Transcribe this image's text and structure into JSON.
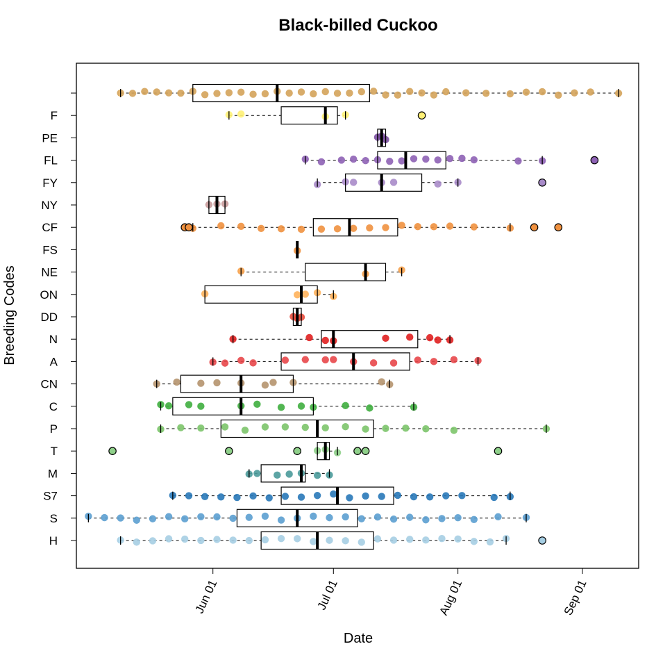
{
  "chart_data": {
    "type": "box",
    "title": "Black-billed Cuckoo",
    "xlabel": "Date",
    "ylabel": "Breeding Codes",
    "x_ticks": [
      "Jun 01",
      "Jul 01",
      "Aug 01",
      "Sep 01"
    ],
    "x_tick_dates": [
      "2020-06-01",
      "2020-07-01",
      "2020-08-01",
      "2020-09-01"
    ],
    "xlim": [
      "2020-04-28",
      "2020-09-15"
    ],
    "grid": false,
    "categories": [
      {
        "code": "",
        "color": "#D4A35A",
        "whisker_low": "2020-05-09",
        "q1": "2020-05-27",
        "median": "2020-06-17",
        "q3": "2020-07-10",
        "whisker_high": "2020-09-10",
        "outliers": [],
        "points": [
          "2020-05-09",
          "2020-05-12",
          "2020-05-15",
          "2020-05-18",
          "2020-05-21",
          "2020-05-24",
          "2020-05-27",
          "2020-05-30",
          "2020-06-02",
          "2020-06-05",
          "2020-06-08",
          "2020-06-11",
          "2020-06-14",
          "2020-06-17",
          "2020-06-20",
          "2020-06-23",
          "2020-06-26",
          "2020-06-29",
          "2020-07-02",
          "2020-07-05",
          "2020-07-08",
          "2020-07-11",
          "2020-07-14",
          "2020-07-17",
          "2020-07-20",
          "2020-07-23",
          "2020-07-26",
          "2020-07-29",
          "2020-08-03",
          "2020-08-08",
          "2020-08-14",
          "2020-08-18",
          "2020-08-22",
          "2020-08-26",
          "2020-08-30",
          "2020-09-03",
          "2020-09-10"
        ]
      },
      {
        "code": "F",
        "color": "#FFF176",
        "whisker_low": "2020-06-05",
        "q1": "2020-06-18",
        "median": "2020-06-29",
        "q3": "2020-07-02",
        "whisker_high": "2020-07-04",
        "outliers": [
          "2020-07-23"
        ],
        "points": [
          "2020-06-05",
          "2020-06-08",
          "2020-06-29",
          "2020-07-04"
        ]
      },
      {
        "code": "PE",
        "color": "#7B4FA0",
        "whisker_low": "2020-07-12",
        "q1": "2020-07-12",
        "median": "2020-07-13",
        "q3": "2020-07-14",
        "whisker_high": "2020-07-14",
        "outliers": [],
        "points": [
          "2020-07-12",
          "2020-07-13",
          "2020-07-14"
        ]
      },
      {
        "code": "FL",
        "color": "#8E62B5",
        "whisker_low": "2020-06-24",
        "q1": "2020-07-12",
        "median": "2020-07-19",
        "q3": "2020-07-29",
        "whisker_high": "2020-08-22",
        "outliers": [
          "2020-09-04"
        ],
        "points": [
          "2020-06-24",
          "2020-06-28",
          "2020-07-03",
          "2020-07-06",
          "2020-07-09",
          "2020-07-12",
          "2020-07-15",
          "2020-07-18",
          "2020-07-21",
          "2020-07-24",
          "2020-07-27",
          "2020-07-30",
          "2020-08-02",
          "2020-08-05",
          "2020-08-16",
          "2020-08-22"
        ]
      },
      {
        "code": "FY",
        "color": "#A88BC9",
        "whisker_low": "2020-06-27",
        "q1": "2020-07-04",
        "median": "2020-07-13",
        "q3": "2020-07-23",
        "whisker_high": "2020-08-01",
        "outliers": [
          "2020-08-22"
        ],
        "points": [
          "2020-06-27",
          "2020-07-04",
          "2020-07-06",
          "2020-07-13",
          "2020-07-16",
          "2020-07-27",
          "2020-08-01"
        ]
      },
      {
        "code": "NY",
        "color": "#C89A9A",
        "whisker_low": "2020-05-31",
        "q1": "2020-05-31",
        "median": "2020-06-02",
        "q3": "2020-06-04",
        "whisker_high": "2020-06-04",
        "outliers": [],
        "points": [
          "2020-05-31",
          "2020-06-02",
          "2020-06-04"
        ]
      },
      {
        "code": "CF",
        "color": "#F0913F",
        "whisker_low": "2020-05-27",
        "q1": "2020-06-26",
        "median": "2020-07-05",
        "q3": "2020-07-17",
        "whisker_high": "2020-08-14",
        "outliers": [
          "2020-05-25",
          "2020-05-26",
          "2020-08-20",
          "2020-08-26"
        ],
        "points": [
          "2020-05-27",
          "2020-06-03",
          "2020-06-08",
          "2020-06-13",
          "2020-06-18",
          "2020-06-23",
          "2020-06-28",
          "2020-07-02",
          "2020-07-06",
          "2020-07-10",
          "2020-07-14",
          "2020-07-18",
          "2020-07-22",
          "2020-07-26",
          "2020-07-30",
          "2020-08-05",
          "2020-08-14"
        ]
      },
      {
        "code": "FS",
        "color": "#F0913F",
        "whisker_low": "2020-06-22",
        "q1": "2020-06-22",
        "median": "2020-06-22",
        "q3": "2020-06-22",
        "whisker_high": "2020-06-22",
        "outliers": [],
        "points": [
          "2020-06-22"
        ]
      },
      {
        "code": "NE",
        "color": "#F5A04A",
        "whisker_low": "2020-06-08",
        "q1": "2020-06-24",
        "median": "2020-07-09",
        "q3": "2020-07-14",
        "whisker_high": "2020-07-18",
        "outliers": [],
        "points": [
          "2020-06-08",
          "2020-07-09",
          "2020-07-18"
        ]
      },
      {
        "code": "ON",
        "color": "#FFB35C",
        "whisker_low": "2020-05-30",
        "q1": "2020-05-30",
        "median": "2020-06-23",
        "q3": "2020-06-27",
        "whisker_high": "2020-07-01",
        "outliers": [],
        "points": [
          "2020-05-30",
          "2020-06-22",
          "2020-06-24",
          "2020-06-27",
          "2020-07-01"
        ]
      },
      {
        "code": "DD",
        "color": "#E84B3C",
        "whisker_low": "2020-06-21",
        "q1": "2020-06-21",
        "median": "2020-06-22",
        "q3": "2020-06-23",
        "whisker_high": "2020-06-23",
        "outliers": [],
        "points": [
          "2020-06-21",
          "2020-06-22",
          "2020-06-23"
        ]
      },
      {
        "code": "N",
        "color": "#E02020",
        "whisker_low": "2020-06-06",
        "q1": "2020-06-28",
        "median": "2020-07-01",
        "q3": "2020-07-22",
        "whisker_high": "2020-07-30",
        "outliers": [],
        "points": [
          "2020-06-06",
          "2020-06-25",
          "2020-06-29",
          "2020-07-01",
          "2020-07-14",
          "2020-07-20",
          "2020-07-25",
          "2020-07-27",
          "2020-07-30"
        ]
      },
      {
        "code": "A",
        "color": "#E8474A",
        "whisker_low": "2020-06-01",
        "q1": "2020-06-18",
        "median": "2020-07-06",
        "q3": "2020-07-20",
        "whisker_high": "2020-08-06",
        "outliers": [],
        "points": [
          "2020-06-01",
          "2020-06-04",
          "2020-06-08",
          "2020-06-11",
          "2020-06-19",
          "2020-06-24",
          "2020-06-29",
          "2020-07-01",
          "2020-07-06",
          "2020-07-11",
          "2020-07-16",
          "2020-07-22",
          "2020-07-26",
          "2020-07-31",
          "2020-08-06"
        ]
      },
      {
        "code": "CN",
        "color": "#B5936E",
        "whisker_low": "2020-05-18",
        "q1": "2020-05-24",
        "median": "2020-06-08",
        "q3": "2020-06-21",
        "whisker_high": "2020-07-15",
        "outliers": [],
        "points": [
          "2020-05-18",
          "2020-05-23",
          "2020-05-29",
          "2020-06-02",
          "2020-06-08",
          "2020-06-14",
          "2020-06-16",
          "2020-06-21",
          "2020-07-13",
          "2020-07-15"
        ]
      },
      {
        "code": "C",
        "color": "#3FAE3F",
        "whisker_low": "2020-05-19",
        "q1": "2020-05-22",
        "median": "2020-06-08",
        "q3": "2020-06-26",
        "whisker_high": "2020-07-21",
        "outliers": [],
        "points": [
          "2020-05-19",
          "2020-05-21",
          "2020-05-26",
          "2020-05-29",
          "2020-06-08",
          "2020-06-12",
          "2020-06-18",
          "2020-06-23",
          "2020-06-26",
          "2020-07-04",
          "2020-07-10",
          "2020-07-21"
        ]
      },
      {
        "code": "P",
        "color": "#7CC46A",
        "whisker_low": "2020-05-19",
        "q1": "2020-06-03",
        "median": "2020-06-27",
        "q3": "2020-07-11",
        "whisker_high": "2020-08-23",
        "outliers": [],
        "points": [
          "2020-05-19",
          "2020-05-24",
          "2020-05-29",
          "2020-06-04",
          "2020-06-09",
          "2020-06-14",
          "2020-06-19",
          "2020-06-24",
          "2020-06-29",
          "2020-07-04",
          "2020-07-09",
          "2020-07-14",
          "2020-07-19",
          "2020-07-24",
          "2020-07-31",
          "2020-08-23"
        ]
      },
      {
        "code": "T",
        "color": "#8FD08A",
        "whisker_low": "2020-06-27",
        "q1": "2020-06-27",
        "median": "2020-06-29",
        "q3": "2020-06-30",
        "whisker_high": "2020-07-02",
        "outliers": [
          "2020-05-07",
          "2020-06-05",
          "2020-06-22",
          "2020-07-07",
          "2020-07-09",
          "2020-08-11"
        ],
        "points": [
          "2020-06-27",
          "2020-06-29",
          "2020-07-02"
        ]
      },
      {
        "code": "M",
        "color": "#4A9A9A",
        "whisker_low": "2020-06-10",
        "q1": "2020-06-13",
        "median": "2020-06-23",
        "q3": "2020-06-24",
        "whisker_high": "2020-06-30",
        "outliers": [],
        "points": [
          "2020-06-10",
          "2020-06-12",
          "2020-06-17",
          "2020-06-20",
          "2020-06-23",
          "2020-06-27",
          "2020-06-30"
        ]
      },
      {
        "code": "S7",
        "color": "#2878B8",
        "whisker_low": "2020-05-22",
        "q1": "2020-06-18",
        "median": "2020-07-02",
        "q3": "2020-07-16",
        "whisker_high": "2020-08-14",
        "outliers": [],
        "points": [
          "2020-05-22",
          "2020-05-26",
          "2020-05-30",
          "2020-06-03",
          "2020-06-07",
          "2020-06-11",
          "2020-06-15",
          "2020-06-19",
          "2020-06-23",
          "2020-06-27",
          "2020-07-01",
          "2020-07-05",
          "2020-07-09",
          "2020-07-13",
          "2020-07-17",
          "2020-07-21",
          "2020-07-25",
          "2020-07-29",
          "2020-08-02",
          "2020-08-10",
          "2020-08-14"
        ]
      },
      {
        "code": "S",
        "color": "#5B9FD0",
        "whisker_low": "2020-05-01",
        "q1": "2020-06-07",
        "median": "2020-06-22",
        "q3": "2020-07-07",
        "whisker_high": "2020-08-18",
        "outliers": [],
        "points": [
          "2020-05-01",
          "2020-05-05",
          "2020-05-09",
          "2020-05-13",
          "2020-05-17",
          "2020-05-21",
          "2020-05-25",
          "2020-05-29",
          "2020-06-02",
          "2020-06-06",
          "2020-06-10",
          "2020-06-14",
          "2020-06-18",
          "2020-06-22",
          "2020-06-26",
          "2020-06-30",
          "2020-07-04",
          "2020-07-08",
          "2020-07-12",
          "2020-07-16",
          "2020-07-20",
          "2020-07-24",
          "2020-07-28",
          "2020-08-01",
          "2020-08-05",
          "2020-08-11",
          "2020-08-18"
        ]
      },
      {
        "code": "H",
        "color": "#A6CEE3",
        "whisker_low": "2020-05-09",
        "q1": "2020-06-13",
        "median": "2020-06-27",
        "q3": "2020-07-11",
        "whisker_high": "2020-08-13",
        "outliers": [
          "2020-08-22"
        ],
        "points": [
          "2020-05-09",
          "2020-05-13",
          "2020-05-17",
          "2020-05-21",
          "2020-05-25",
          "2020-05-29",
          "2020-06-02",
          "2020-06-06",
          "2020-06-10",
          "2020-06-14",
          "2020-06-18",
          "2020-06-22",
          "2020-06-26",
          "2020-06-30",
          "2020-07-04",
          "2020-07-08",
          "2020-07-12",
          "2020-07-16",
          "2020-07-20",
          "2020-07-24",
          "2020-07-28",
          "2020-08-01",
          "2020-08-05",
          "2020-08-09",
          "2020-08-13"
        ]
      }
    ]
  }
}
